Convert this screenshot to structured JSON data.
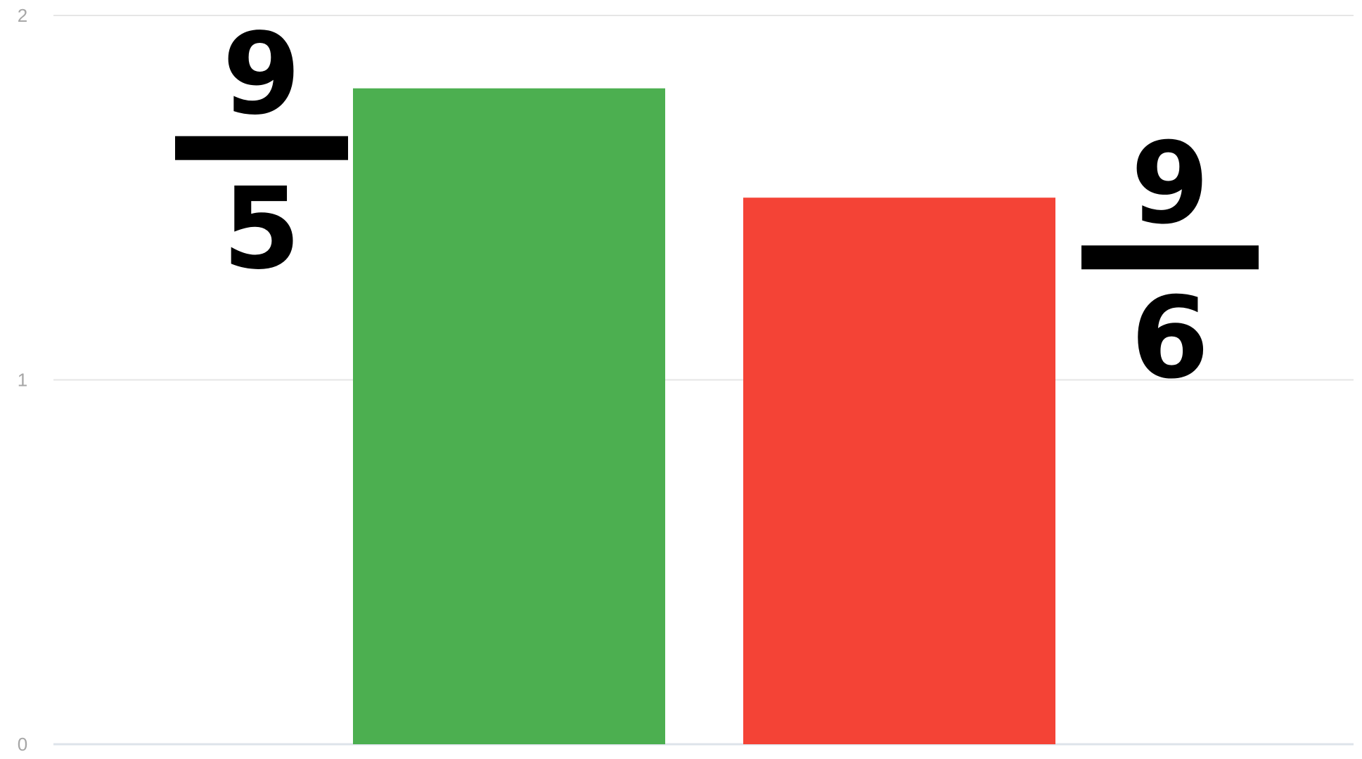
{
  "chart_data": {
    "type": "bar",
    "title": "",
    "xlabel": "",
    "ylabel": "",
    "ylim": [
      0,
      2
    ],
    "grid": true,
    "y_ticks": [
      {
        "value": 0,
        "label": "0"
      },
      {
        "value": 1,
        "label": "1"
      },
      {
        "value": 2,
        "label": "2"
      }
    ],
    "bars": [
      {
        "value": 1.8,
        "color": "#4caf50",
        "numerator": "9",
        "denominator": "5",
        "label_side": "left"
      },
      {
        "value": 1.5,
        "color": "#f44336",
        "numerator": "9",
        "denominator": "6",
        "label_side": "right"
      }
    ]
  }
}
